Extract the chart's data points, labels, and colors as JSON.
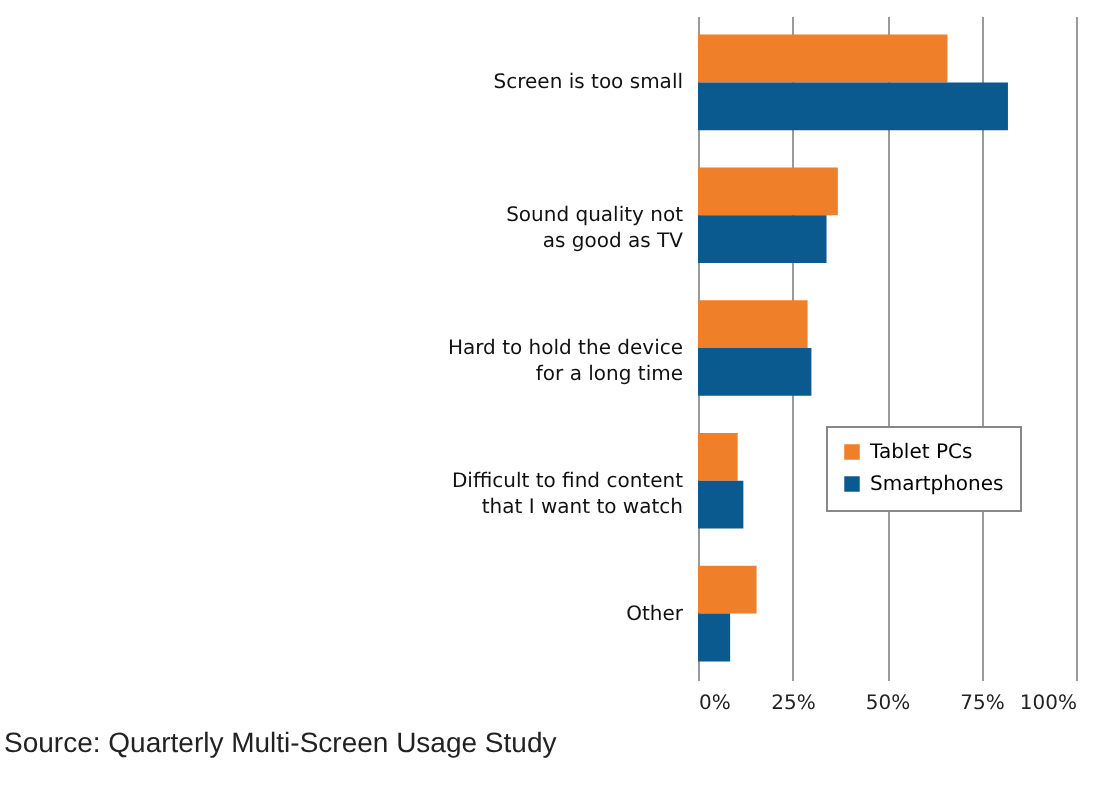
{
  "chart_data": {
    "type": "bar",
    "orientation": "horizontal",
    "categories": [
      "Screen is too small",
      "Sound quality not as good as TV",
      "Hard to hold the device for a long time",
      "Difficult to find content that I want to watch",
      "Other"
    ],
    "series": [
      {
        "name": "Tablet PCs",
        "color": "#f07f2a",
        "values": [
          66,
          37,
          29,
          10.5,
          15.5
        ]
      },
      {
        "name": "Smartphones",
        "color": "#0a5a8f",
        "values": [
          82,
          34,
          30,
          12,
          8.5
        ]
      }
    ],
    "xlim": [
      0,
      100
    ],
    "xticks": [
      {
        "value": 0,
        "label": "0%"
      },
      {
        "value": 25,
        "label": "25%"
      },
      {
        "value": 50,
        "label": "50%"
      },
      {
        "value": 75,
        "label": "75%"
      },
      {
        "value": 100,
        "label": "100%"
      }
    ],
    "grid": "x",
    "legend": "right",
    "annotations": [
      "Source: Quarterly Multi-Screen Usage Study"
    ]
  }
}
